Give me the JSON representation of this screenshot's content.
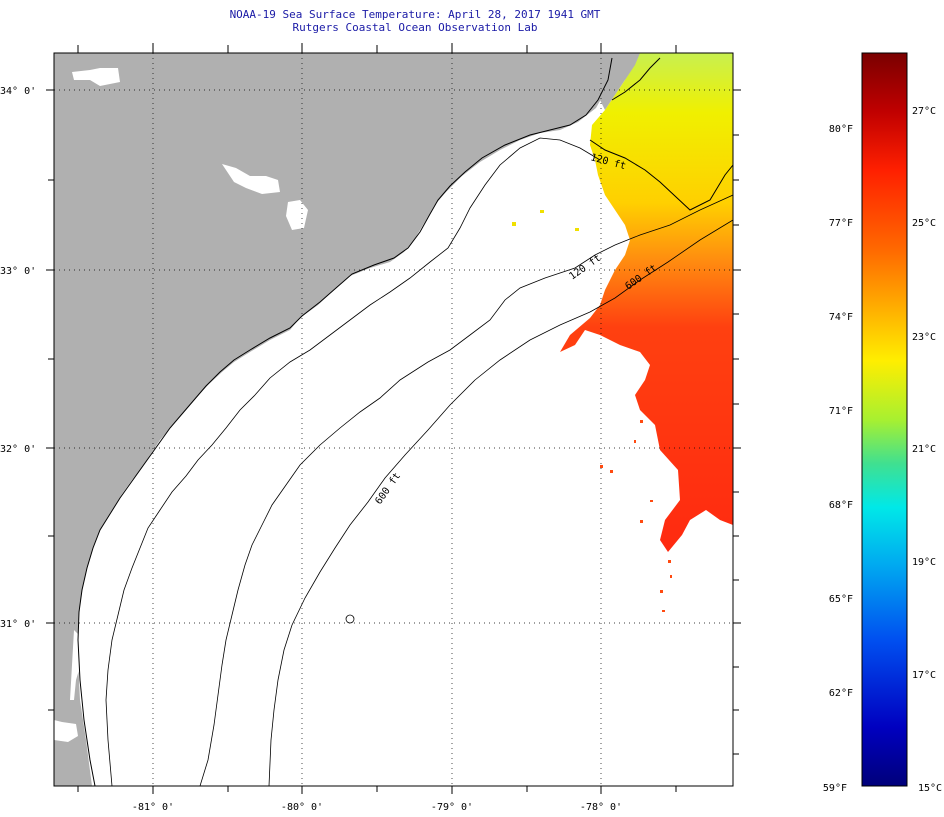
{
  "header": {
    "title": "NOAA-19 Sea Surface Temperature:  April 28, 2017 1941 GMT",
    "subtitle": "Rutgers Coastal Ocean Observation Lab"
  },
  "map": {
    "lat_labels": [
      "34° 0'",
      "33° 0'",
      "32° 0'",
      "31° 0'"
    ],
    "lon_labels": [
      "-81° 0'",
      "-80° 0'",
      "-79° 0'",
      "-78° 0'"
    ],
    "isobath_labels": [
      "120 ft",
      "600 ft",
      "600 ft",
      "120 ft"
    ],
    "colors": {
      "land": "#b0b0b0",
      "ocean_nodata": "#ffffff",
      "coast": "#000000"
    }
  },
  "colorbar": {
    "fahrenheit_labels": [
      "80°F",
      "77°F",
      "74°F",
      "71°F",
      "68°F",
      "65°F",
      "62°F",
      "59°F"
    ],
    "celsius_labels": [
      "27°C",
      "25°C",
      "23°C",
      "21°C",
      "19°C",
      "17°C",
      "15°C"
    ],
    "gradient_stops": [
      "#7a0000",
      "#d80000",
      "#ff3000",
      "#ff7a00",
      "#ffb000",
      "#ffee00",
      "#c8f000",
      "#50e080",
      "#00e8e8",
      "#00a0f0",
      "#0050f0",
      "#0000c8",
      "#00007a"
    ]
  }
}
